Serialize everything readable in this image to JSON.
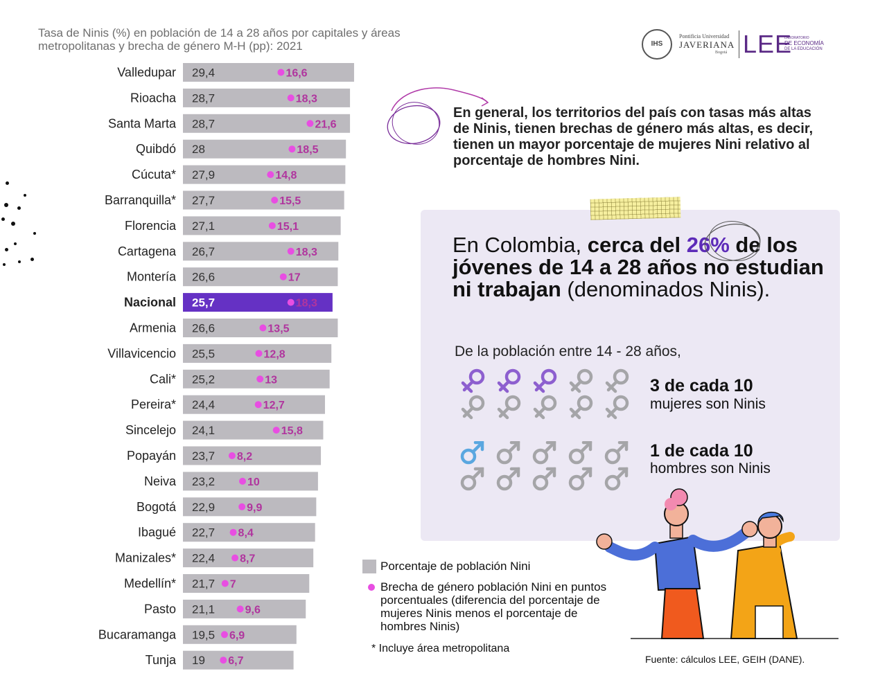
{
  "title": "Tasa de Ninis (%) en población de 14 a 28 años por capitales y áreas metropolitanas y brecha de género M-H (pp): 2021",
  "logos": {
    "seal_text": "IHS",
    "university_small": "Pontificia Universidad",
    "university": "JAVERIANA",
    "city": "Bogotá",
    "lee": "LEE",
    "lab_line1": "LABORATORIO",
    "lab_line2": "DE ECONOMÍA",
    "lab_line3": "DE LA EDUCACIÓN"
  },
  "chart_data": {
    "type": "bar",
    "orientation": "horizontal",
    "categories": [
      "Valledupar",
      "Rioacha",
      "Santa Marta",
      "Quibdó",
      "Cúcuta*",
      "Barranquilla*",
      "Florencia",
      "Cartagena",
      "Montería",
      "Nacional",
      "Armenia",
      "Villavicencio",
      "Cali*",
      "Pereira*",
      "Sincelejo",
      "Popayán",
      "Neiva",
      "Bogotá",
      "Ibagué",
      "Manizales*",
      "Medellín*",
      "Pasto",
      "Bucaramanga",
      "Tunja"
    ],
    "series": [
      {
        "name": "Porcentaje de población Nini",
        "values": [
          29.4,
          28.7,
          28.7,
          28,
          27.9,
          27.7,
          27.1,
          26.7,
          26.6,
          25.7,
          26.6,
          25.5,
          25.2,
          24.4,
          24.1,
          23.7,
          23.2,
          22.9,
          22.7,
          22.4,
          21.7,
          21.1,
          19.5,
          19
        ],
        "labels": [
          "29,4",
          "28,7",
          "28,7",
          "28",
          "27,9",
          "27,7",
          "27,1",
          "26,7",
          "26,6",
          "25,7",
          "26,6",
          "25,5",
          "25,2",
          "24,4",
          "24,1",
          "23,7",
          "23,2",
          "22,9",
          "22,7",
          "22,4",
          "21,7",
          "21,1",
          "19,5",
          "19"
        ]
      },
      {
        "name": "Brecha de género población Nini en puntos porcentuales (diferencia del porcentaje de mujeres Ninis menos el porcentaje de hombres Ninis)",
        "values": [
          16.6,
          18.3,
          21.6,
          18.5,
          14.8,
          15.5,
          15.1,
          18.3,
          17,
          18.3,
          13.5,
          12.8,
          13,
          12.7,
          15.8,
          8.2,
          10,
          9.9,
          8.4,
          8.7,
          7,
          9.6,
          6.9,
          6.7
        ],
        "labels": [
          "16,6",
          "18,3",
          "21,6",
          "18,5",
          "14,8",
          "15,5",
          "15,1",
          "18,3",
          "17",
          "18,3",
          "13,5",
          "12,8",
          "13",
          "12,7",
          "15,8",
          "8,2",
          "10",
          "9,9",
          "8,4",
          "8,7",
          "7",
          "9,6",
          "6,9",
          "6,7"
        ]
      }
    ],
    "highlight_category": "Nacional",
    "colors": {
      "bar": "#bcbabf",
      "highlight_bar": "#6531c4",
      "gap_dot": "#e84ee2",
      "gap_label": "#b0359e"
    }
  },
  "general_text": "En general, los territorios del país con tasas más altas de Ninis, tienen brechas de género más altas, es decir, tienen un mayor porcentaje de mujeres Nini relativo al porcentaje de hombres Nini.",
  "headline": {
    "part1": "En Colombia, ",
    "bold1": "cerca del ",
    "pct": "26%",
    "bold2": " de los jóvenes de 14 a 28 años no estudian ni trabajan",
    "part2": " (denominados Ninis)."
  },
  "subtitle": "De la población entre 14 - 28 años,",
  "women": {
    "line1": "3 de cada 10",
    "line2": "mujeres son Ninis",
    "highlighted": 3,
    "total": 10,
    "color": "#8d5fcf"
  },
  "men": {
    "line1": "1 de cada 10",
    "line2": "hombres son Ninis",
    "highlighted": 1,
    "total": 10,
    "color": "#5aa7e0"
  },
  "icon_gray": "#a5a5a8",
  "legend": {
    "bar_label": "Porcentaje de población Nini",
    "dot_label": "Brecha de género población Nini en puntos porcentuales (diferencia del porcentaje de mujeres Ninis menos el porcentaje de hombres Ninis)"
  },
  "note": "* Incluye área metropolitana",
  "source": "Fuente: cálculos LEE, GEIH (DANE)."
}
